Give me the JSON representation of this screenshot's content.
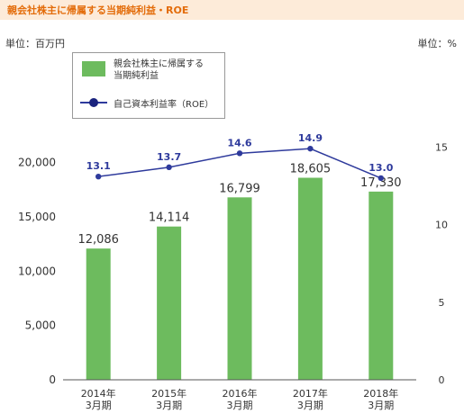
{
  "header": {
    "title": "親会社株主に帰属する当期純利益・ROE"
  },
  "units": {
    "left": "単位：百万円",
    "right": "単位：%"
  },
  "legend": {
    "bar_label": "親会社株主に帰属する\n当期純利益",
    "line_label": "自己資本利益率（ROE）"
  },
  "colors": {
    "bar": "#6dbb5e",
    "line": "#2e3a9c",
    "title": "#e36c0a",
    "title_bg": "#fdebd9"
  },
  "chart_data": {
    "type": "bar",
    "categories": [
      "2014年\n3月期",
      "2015年\n3月期",
      "2016年\n3月期",
      "2017年\n3月期",
      "2018年\n3月期"
    ],
    "series": [
      {
        "name": "親会社株主に帰属する当期純利益",
        "type": "bar",
        "axis": "left",
        "values": [
          12086,
          14114,
          16799,
          18605,
          17330
        ],
        "labels": [
          "12,086",
          "14,114",
          "16,799",
          "18,605",
          "17,330"
        ]
      },
      {
        "name": "自己資本利益率（ROE）",
        "type": "line",
        "axis": "right",
        "values": [
          13.1,
          13.7,
          14.6,
          14.9,
          13.0
        ],
        "labels": [
          "13.1",
          "13.7",
          "14.6",
          "14.9",
          "13.0"
        ]
      }
    ],
    "y_left": {
      "range": [
        0,
        30000
      ],
      "ticks": [
        0,
        5000,
        10000,
        15000,
        20000
      ],
      "tick_labels": [
        "0",
        "5,000",
        "10,000",
        "15,000",
        "20,000"
      ]
    },
    "y_right": {
      "range": [
        0,
        21
      ],
      "ticks": [
        0,
        5,
        10,
        15
      ],
      "tick_labels": [
        "0",
        "5",
        "10",
        "15"
      ]
    },
    "grid": false,
    "legend_position": "top-left"
  }
}
